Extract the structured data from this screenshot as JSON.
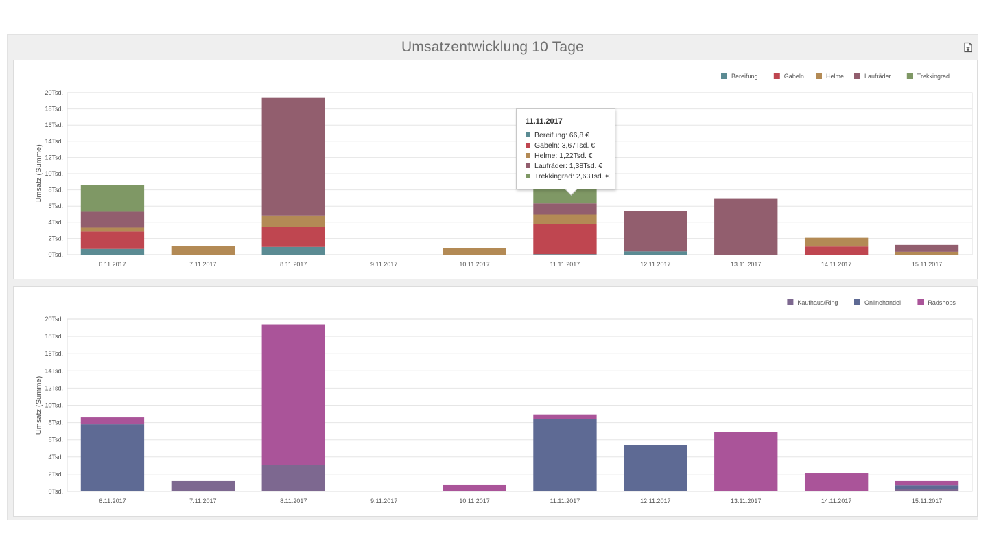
{
  "dashboard": {
    "title": "Umsatzentwicklung 10 Tage",
    "export_icon": "export-document-icon"
  },
  "tooltip": {
    "title": "11.11.2017",
    "rows": [
      {
        "label": "Bereifung: 66,8 €",
        "color": "#5b8b93"
      },
      {
        "label": "Gabeln: 3,67Tsd. €",
        "color": "#bf4650"
      },
      {
        "label": "Helme: 1,22Tsd. €",
        "color": "#b38a55"
      },
      {
        "label": "Laufräder: 1,38Tsd. €",
        "color": "#925e6e"
      },
      {
        "label": "Trekkingrad: 2,63Tsd. €",
        "color": "#7f9865"
      }
    ]
  },
  "chart_data": [
    {
      "type": "bar",
      "stacked": true,
      "title": "",
      "xlabel": "",
      "ylabel": "Umsatz (Summe)",
      "ylim": [
        0,
        20000
      ],
      "yticks": [
        0,
        2000,
        4000,
        6000,
        8000,
        10000,
        12000,
        14000,
        16000,
        18000,
        20000
      ],
      "yticklabels": [
        "0Tsd.",
        "2Tsd.",
        "4Tsd.",
        "6Tsd.",
        "8Tsd.",
        "10Tsd.",
        "12Tsd.",
        "14Tsd.",
        "16Tsd.",
        "18Tsd.",
        "20Tsd."
      ],
      "grid": true,
      "legend_position": "top-right",
      "categories": [
        "6.11.2017",
        "7.11.2017",
        "8.11.2017",
        "9.11.2017",
        "10.11.2017",
        "11.11.2017",
        "12.11.2017",
        "13.11.2017",
        "14.11.2017",
        "15.11.2017"
      ],
      "series": [
        {
          "name": "Bereifung",
          "color": "#5b8b93",
          "values": [
            700,
            0,
            950,
            0,
            0,
            66.8,
            400,
            0,
            0,
            0
          ]
        },
        {
          "name": "Gabeln",
          "color": "#bf4650",
          "values": [
            2150,
            0,
            2500,
            0,
            0,
            3670,
            0,
            0,
            1000,
            0
          ]
        },
        {
          "name": "Helme",
          "color": "#b38a55",
          "values": [
            500,
            1100,
            1400,
            0,
            800,
            1220,
            0,
            0,
            1150,
            350
          ]
        },
        {
          "name": "Laufräder",
          "color": "#925e6e",
          "values": [
            1950,
            0,
            14500,
            0,
            0,
            1380,
            5000,
            6900,
            0,
            850
          ]
        },
        {
          "name": "Trekkingrad",
          "color": "#7f9865",
          "values": [
            3300,
            0,
            0,
            0,
            0,
            2630,
            0,
            0,
            0,
            0
          ]
        }
      ]
    },
    {
      "type": "bar",
      "stacked": true,
      "title": "",
      "xlabel": "",
      "ylabel": "Umsatz (Summe)",
      "ylim": [
        0,
        20000
      ],
      "yticks": [
        0,
        2000,
        4000,
        6000,
        8000,
        10000,
        12000,
        14000,
        16000,
        18000,
        20000
      ],
      "yticklabels": [
        "0Tsd.",
        "2Tsd.",
        "4Tsd.",
        "6Tsd.",
        "8Tsd.",
        "10Tsd.",
        "12Tsd.",
        "14Tsd.",
        "16Tsd.",
        "18Tsd.",
        "20Tsd."
      ],
      "grid": true,
      "legend_position": "top-right",
      "categories": [
        "6.11.2017",
        "7.11.2017",
        "8.11.2017",
        "9.11.2017",
        "10.11.2017",
        "11.11.2017",
        "12.11.2017",
        "13.11.2017",
        "14.11.2017",
        "15.11.2017"
      ],
      "series": [
        {
          "name": "Kaufhaus/Ring",
          "color": "#7d6890",
          "values": [
            0,
            1200,
            3100,
            0,
            0,
            0,
            0,
            0,
            0,
            300
          ]
        },
        {
          "name": "Onlinehandel",
          "color": "#5e6a94",
          "values": [
            7800,
            0,
            0,
            0,
            0,
            8400,
            5350,
            0,
            0,
            400
          ]
        },
        {
          "name": "Radshops",
          "color": "#aa5499",
          "values": [
            800,
            0,
            16300,
            0,
            800,
            550,
            0,
            6900,
            2150,
            500
          ]
        }
      ]
    }
  ]
}
